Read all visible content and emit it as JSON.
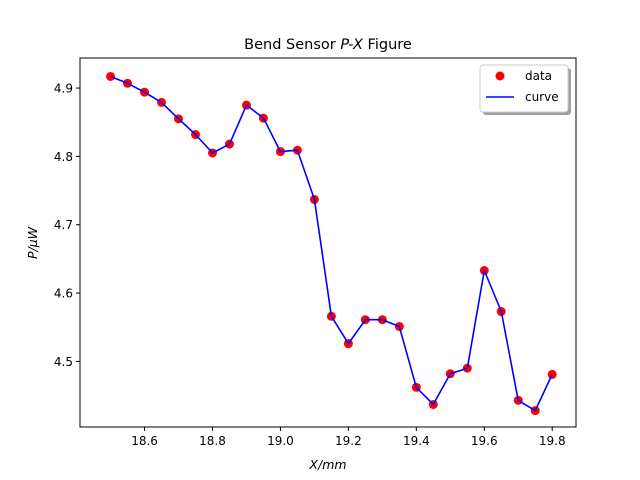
{
  "chart_data": {
    "type": "line",
    "title_prefix": "Bend Sensor ",
    "title_italic": "P-X",
    "title_suffix": " Figure",
    "xlabel": "X/mm",
    "ylabel": "P/μW",
    "xlim": [
      18.41,
      19.87
    ],
    "ylim": [
      4.404,
      4.944
    ],
    "x_ticks": [
      18.6,
      18.8,
      19.0,
      19.2,
      19.4,
      19.6,
      19.8
    ],
    "x_tick_labels": [
      "18.6",
      "18.8",
      "19.0",
      "19.2",
      "19.4",
      "19.6",
      "19.8"
    ],
    "y_ticks": [
      4.5,
      4.6,
      4.7,
      4.8,
      4.9
    ],
    "y_tick_labels": [
      "4.5",
      "4.6",
      "4.7",
      "4.8",
      "4.9"
    ],
    "x": [
      18.5,
      18.55,
      18.6,
      18.65,
      18.7,
      18.75,
      18.8,
      18.85,
      18.9,
      18.95,
      19.0,
      19.05,
      19.1,
      19.15,
      19.2,
      19.25,
      19.3,
      19.35,
      19.4,
      19.45,
      19.5,
      19.55,
      19.6,
      19.65,
      19.7,
      19.75,
      19.8
    ],
    "series": [
      {
        "name": "data",
        "kind": "scatter",
        "color": "#ff0000",
        "values": [
          4.917,
          4.907,
          4.894,
          4.879,
          4.855,
          4.832,
          4.805,
          4.818,
          4.875,
          4.856,
          4.807,
          4.809,
          4.737,
          4.566,
          4.526,
          4.561,
          4.561,
          4.551,
          4.462,
          4.437,
          4.482,
          4.49,
          4.633,
          4.573,
          4.443,
          4.428,
          4.481
        ]
      },
      {
        "name": "curve",
        "kind": "line",
        "color": "#0000ff",
        "values": [
          4.917,
          4.907,
          4.894,
          4.879,
          4.855,
          4.832,
          4.805,
          4.818,
          4.875,
          4.856,
          4.807,
          4.809,
          4.737,
          4.566,
          4.526,
          4.561,
          4.561,
          4.551,
          4.462,
          4.437,
          4.482,
          4.49,
          4.633,
          4.573,
          4.443,
          4.428,
          4.481
        ]
      }
    ],
    "grid": false,
    "legend": "top-right"
  }
}
